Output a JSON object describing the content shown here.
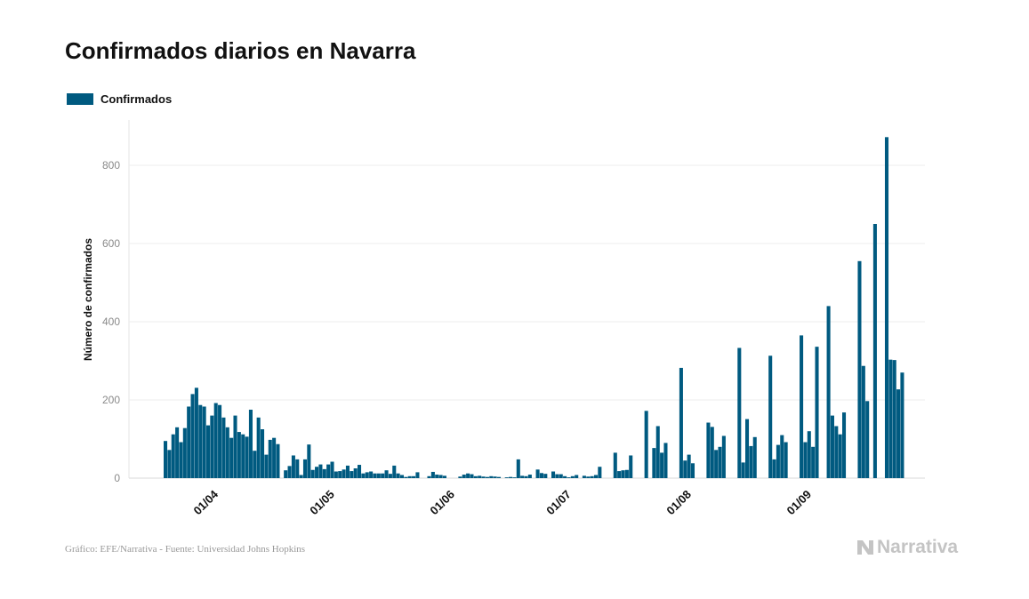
{
  "title": "Confirmados diarios en Navarra",
  "legend": {
    "label": "Confirmados",
    "color": "#005a80"
  },
  "footer": "Gráfico: EFE/Narrativa - Fuente: Universidad Johns Hopkins",
  "brand": "Narrativa",
  "chart_data": {
    "type": "bar",
    "title": "Confirmados diarios en Navarra",
    "ylabel": "Número de confirmados",
    "xlabel": "",
    "ylim": [
      0,
      920
    ],
    "yticks": [
      0,
      200,
      400,
      600,
      800
    ],
    "grid": true,
    "legend_position": "top-left",
    "x_start": "2020-03-21",
    "xticks": [
      {
        "label": "01/04",
        "date": "2020-04-01"
      },
      {
        "label": "01/05",
        "date": "2020-05-01"
      },
      {
        "label": "01/06",
        "date": "2020-06-01"
      },
      {
        "label": "01/07",
        "date": "2020-07-01"
      },
      {
        "label": "01/08",
        "date": "2020-08-01"
      },
      {
        "label": "01/09",
        "date": "2020-09-01"
      }
    ],
    "series": [
      {
        "name": "Confirmados",
        "color": "#005a80",
        "values": [
          95,
          72,
          112,
          130,
          92,
          128,
          183,
          215,
          231,
          187,
          183,
          135,
          160,
          192,
          187,
          155,
          130,
          103,
          160,
          118,
          112,
          106,
          175,
          70,
          155,
          125,
          60,
          98,
          103,
          87,
          0,
          20,
          31,
          58,
          48,
          8,
          48,
          86,
          21,
          29,
          35,
          23,
          35,
          42,
          17,
          18,
          22,
          32,
          18,
          25,
          34,
          12,
          15,
          17,
          12,
          12,
          12,
          20,
          11,
          32,
          12,
          8,
          3,
          5,
          5,
          15,
          0,
          0,
          5,
          16,
          9,
          8,
          6,
          0,
          0,
          0,
          4,
          9,
          12,
          10,
          5,
          6,
          4,
          3,
          5,
          4,
          3,
          0,
          2,
          3,
          2,
          48,
          6,
          5,
          9,
          0,
          22,
          13,
          11,
          0,
          17,
          10,
          10,
          5,
          2,
          5,
          8,
          0,
          6,
          4,
          5,
          8,
          29,
          0,
          0,
          0,
          65,
          18,
          20,
          21,
          58,
          0,
          0,
          0,
          172,
          0,
          77,
          133,
          65,
          90,
          0,
          0,
          0,
          282,
          45,
          60,
          38,
          0,
          0,
          0,
          142,
          131,
          72,
          80,
          108,
          0,
          0,
          0,
          333,
          40,
          151,
          82,
          105,
          0,
          0,
          0,
          313,
          48,
          85,
          110,
          92,
          0,
          0,
          0,
          365,
          92,
          120,
          80,
          336,
          0,
          0,
          440,
          160,
          133,
          112,
          168,
          0,
          0,
          0,
          555,
          287,
          197,
          0,
          650,
          0,
          0,
          872,
          303,
          302,
          227,
          270
        ]
      }
    ]
  }
}
